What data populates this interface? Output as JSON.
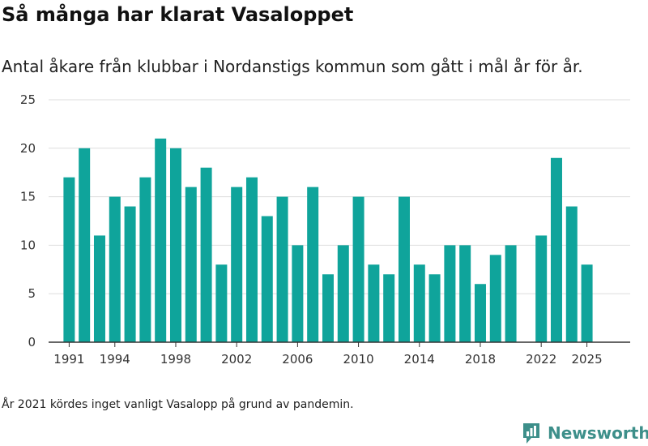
{
  "title": "Så många har klarat Vasaloppet",
  "subtitle": "Antal åkare från klubbar i Nordanstigs kommun som gått i mål år för år.",
  "note": "År 2021 kördes inget vanligt Vasalopp på grund av pandemin.",
  "brand": {
    "name": "Newsworthy",
    "color": "#3d8f8a"
  },
  "chart_data": {
    "type": "bar",
    "title": "Så många har klarat Vasaloppet",
    "xlabel": "",
    "ylabel": "",
    "bar_color": "#0fa49b",
    "ylim": [
      0,
      25
    ],
    "yticks": [
      0,
      5,
      10,
      15,
      20,
      25
    ],
    "xticks": [
      1991,
      1994,
      1998,
      2002,
      2006,
      2010,
      2014,
      2018,
      2022,
      2025
    ],
    "x": [
      1991,
      1992,
      1993,
      1994,
      1995,
      1996,
      1997,
      1998,
      1999,
      2000,
      2001,
      2002,
      2003,
      2004,
      2005,
      2006,
      2007,
      2008,
      2009,
      2010,
      2011,
      2012,
      2013,
      2014,
      2015,
      2016,
      2017,
      2018,
      2019,
      2020,
      2022,
      2023,
      2024,
      2025
    ],
    "values": [
      17,
      20,
      11,
      15,
      14,
      17,
      21,
      20,
      16,
      18,
      8,
      16,
      17,
      13,
      15,
      10,
      16,
      7,
      10,
      15,
      8,
      7,
      15,
      8,
      7,
      10,
      10,
      6,
      9,
      10,
      11,
      19,
      14,
      8
    ],
    "grid": true
  }
}
